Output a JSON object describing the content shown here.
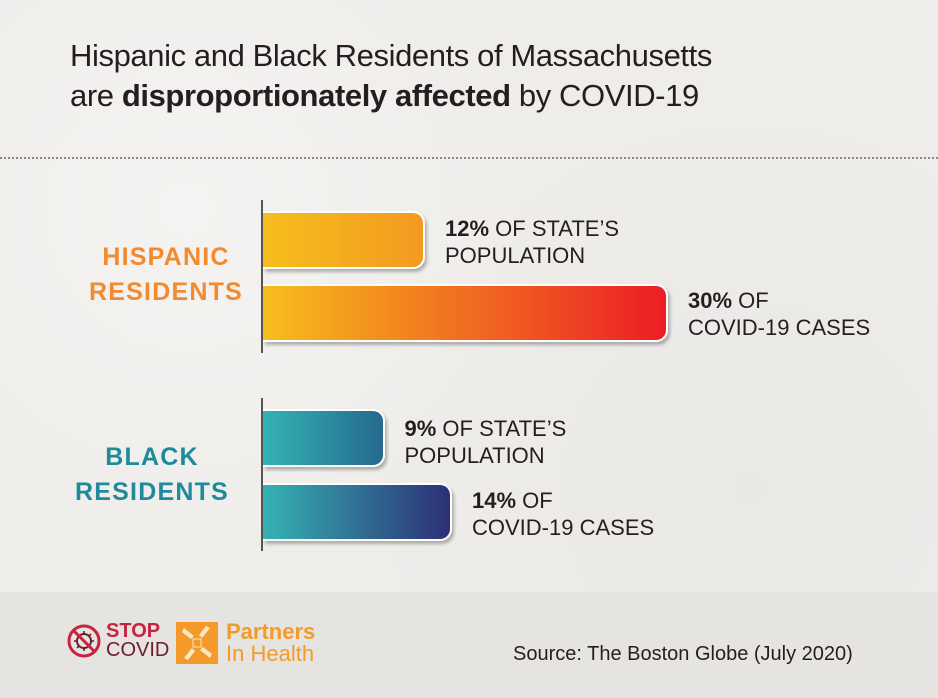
{
  "title": {
    "line1": "Hispanic and Black Residents of Massachusetts",
    "line2_prefix": "are ",
    "line2_bold": "disproportionately affected",
    "line2_suffix": " by COVID-19"
  },
  "colors": {
    "hispanic_label": "#f28a30",
    "black_label": "#1f8a9a",
    "hispanic_pop_gradient": [
      "#f6be1c",
      "#f39a20"
    ],
    "hispanic_cases_gradient": [
      "#f6be1c",
      "#ec1d25"
    ],
    "black_pop_gradient": [
      "#34b3b3",
      "#256a8e"
    ],
    "black_cases_gradient": [
      "#34b3b3",
      "#2d2f76"
    ]
  },
  "chart_data": {
    "type": "bar",
    "orientation": "horizontal",
    "title": "Hispanic and Black Residents of Massachusetts are disproportionately affected by COVID-19",
    "xlabel": "",
    "ylabel": "",
    "grid": false,
    "groups": [
      {
        "label_line1": "HISPANIC",
        "label_line2": "RESIDENTS",
        "bars": [
          {
            "name": "State population",
            "value": 12,
            "label_bold": "12%",
            "label_rest": " OF STATE’S",
            "label_line2": "POPULATION"
          },
          {
            "name": "COVID-19 cases",
            "value": 30,
            "label_bold": "30%",
            "label_rest": " OF",
            "label_line2": "COVID-19 CASES"
          }
        ]
      },
      {
        "label_line1": "BLACK",
        "label_line2": "RESIDENTS",
        "bars": [
          {
            "name": "State population",
            "value": 9,
            "label_bold": "9%",
            "label_rest": " OF STATE’S",
            "label_line2": "POPULATION"
          },
          {
            "name": "COVID-19 cases",
            "value": 14,
            "label_bold": "14%",
            "label_rest": " OF",
            "label_line2": "COVID-19 CASES"
          }
        ]
      }
    ],
    "units": "percent",
    "xlim": [
      0,
      30
    ]
  },
  "footer": {
    "stop_line1": "STOP",
    "stop_line2": "COVID",
    "pih_line1": "Partners",
    "pih_line2": "In Health",
    "source": "Source: The Boston Globe (July 2020)"
  }
}
